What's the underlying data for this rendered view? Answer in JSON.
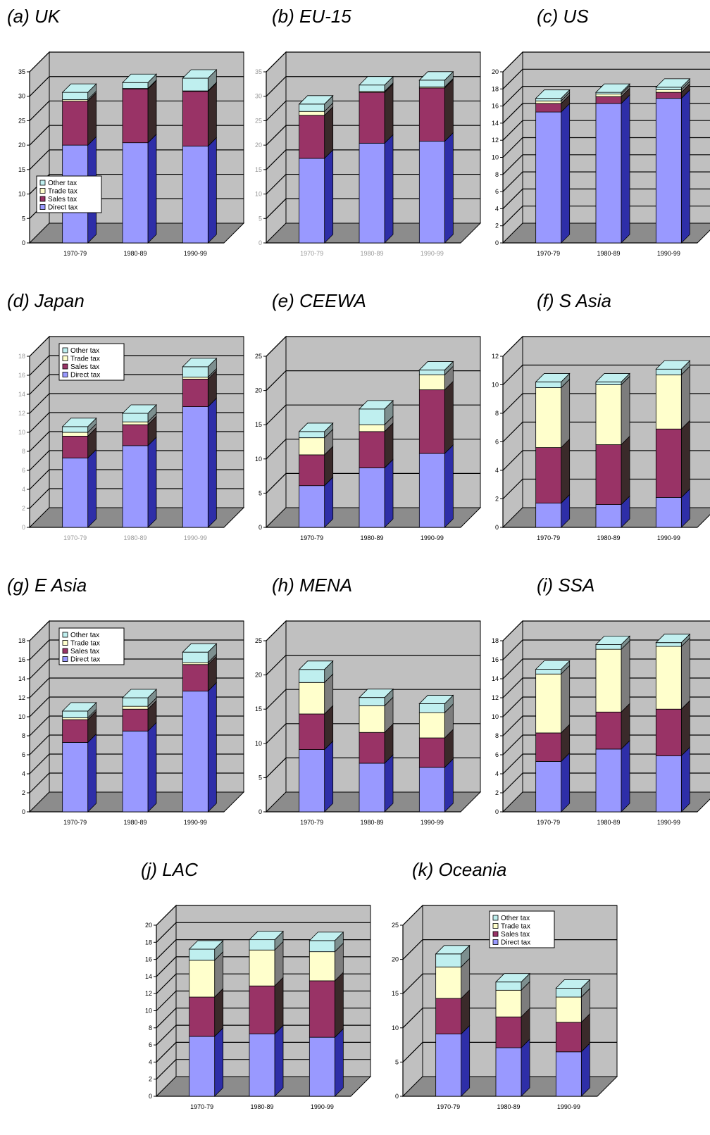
{
  "colors": {
    "Other tax": "#bfefef",
    "Trade tax": "#ffffcc",
    "Sales tax": "#993366",
    "Direct tax": "#9999ff",
    "wall": "#c0c0c0",
    "floor": "#8c8c8c"
  },
  "chart_data": [
    {
      "type": "bar",
      "title": "(a) UK",
      "categories": [
        "1970-79",
        "1980-89",
        "1990-99"
      ],
      "ylim": [
        0,
        35
      ],
      "yticks": [
        0,
        5,
        10,
        15,
        20,
        25,
        30,
        35
      ],
      "legend": [
        "Other tax",
        "Trade tax",
        "Sales tax",
        "Direct tax"
      ],
      "legend_position": "bottom-left",
      "series": [
        {
          "name": "Direct tax",
          "values": [
            20,
            20.5,
            19.8
          ]
        },
        {
          "name": "Sales tax",
          "values": [
            9,
            11,
            11.2
          ]
        },
        {
          "name": "Trade tax",
          "values": [
            0.3,
            0.1,
            0.1
          ]
        },
        {
          "name": "Other tax",
          "values": [
            1.5,
            1.2,
            2.6
          ]
        }
      ]
    },
    {
      "type": "bar",
      "title": "(b) EU-15",
      "categories": [
        "1970-79",
        "1980-89",
        "1990-99"
      ],
      "ylim": [
        0,
        35
      ],
      "yticks": [
        0,
        5,
        10,
        15,
        20,
        25,
        30,
        35
      ],
      "series": [
        {
          "name": "Direct tax",
          "values": [
            17.3,
            20.4,
            20.8
          ]
        },
        {
          "name": "Sales tax",
          "values": [
            8.8,
            10.4,
            10.9
          ]
        },
        {
          "name": "Trade tax",
          "values": [
            0.8,
            0.2,
            0.2
          ]
        },
        {
          "name": "Other tax",
          "values": [
            1.5,
            1.3,
            1.4
          ]
        }
      ]
    },
    {
      "type": "bar",
      "title": "(c) US",
      "categories": [
        "1970-79",
        "1980-89",
        "1990-99"
      ],
      "ylim": [
        0,
        20
      ],
      "yticks": [
        0,
        2,
        4,
        6,
        8,
        10,
        12,
        14,
        16,
        18,
        20
      ],
      "series": [
        {
          "name": "Direct tax",
          "values": [
            15.3,
            16.3,
            16.9
          ]
        },
        {
          "name": "Sales tax",
          "values": [
            1.0,
            0.8,
            0.7
          ]
        },
        {
          "name": "Trade tax",
          "values": [
            0.3,
            0.3,
            0.3
          ]
        },
        {
          "name": "Other tax",
          "values": [
            0.3,
            0.2,
            0.3
          ]
        }
      ]
    },
    {
      "type": "bar",
      "title": "(d) Japan",
      "categories": [
        "1970-79",
        "1980-89",
        "1990-99"
      ],
      "ylim": [
        0,
        18
      ],
      "yticks": [
        0,
        2,
        4,
        6,
        8,
        10,
        12,
        14,
        16,
        18
      ],
      "legend": [
        "Other tax",
        "Trade tax",
        "Sales tax",
        "Direct tax"
      ],
      "legend_position": "top-left",
      "series": [
        {
          "name": "Direct tax",
          "values": [
            7.3,
            8.6,
            12.7
          ]
        },
        {
          "name": "Sales tax",
          "values": [
            2.3,
            2.2,
            2.9
          ]
        },
        {
          "name": "Trade tax",
          "values": [
            0.4,
            0.3,
            0.2
          ]
        },
        {
          "name": "Other tax",
          "values": [
            0.6,
            0.9,
            1.1
          ]
        }
      ]
    },
    {
      "type": "bar",
      "title": "(e) CEEWA",
      "categories": [
        "1970-79",
        "1980-89",
        "1990-99"
      ],
      "ylim": [
        0,
        25
      ],
      "yticks": [
        0,
        5,
        10,
        15,
        20,
        25
      ],
      "series": [
        {
          "name": "Direct tax",
          "values": [
            6.1,
            8.7,
            10.8
          ]
        },
        {
          "name": "Sales tax",
          "values": [
            4.5,
            5.3,
            9.3
          ]
        },
        {
          "name": "Trade tax",
          "values": [
            2.5,
            1.0,
            2.2
          ]
        },
        {
          "name": "Other tax",
          "values": [
            0.9,
            2.3,
            0.7
          ]
        }
      ]
    },
    {
      "type": "bar",
      "title": "(f) S Asia",
      "categories": [
        "1970-79",
        "1980-89",
        "1990-99"
      ],
      "ylim": [
        0,
        12
      ],
      "yticks": [
        0,
        2,
        4,
        6,
        8,
        10,
        12
      ],
      "series": [
        {
          "name": "Direct tax",
          "values": [
            1.7,
            1.6,
            2.1
          ]
        },
        {
          "name": "Sales tax",
          "values": [
            3.9,
            4.2,
            4.8
          ]
        },
        {
          "name": "Trade tax",
          "values": [
            4.2,
            4.2,
            3.8
          ]
        },
        {
          "name": "Other tax",
          "values": [
            0.4,
            0.2,
            0.4
          ]
        }
      ]
    },
    {
      "type": "bar",
      "title": "(g) E Asia",
      "categories": [
        "1970-79",
        "1980-89",
        "1990-99"
      ],
      "ylim": [
        0,
        18
      ],
      "yticks": [
        0,
        2,
        4,
        6,
        8,
        10,
        12,
        14,
        16,
        18
      ],
      "legend": [
        "Other tax",
        "Trade tax",
        "Sales tax",
        "Direct tax"
      ],
      "legend_position": "top-left",
      "series": [
        {
          "name": "Direct tax",
          "values": [
            7.3,
            8.5,
            12.7
          ]
        },
        {
          "name": "Sales tax",
          "values": [
            2.4,
            2.3,
            2.8
          ]
        },
        {
          "name": "Trade tax",
          "values": [
            0.2,
            0.3,
            0.2
          ]
        },
        {
          "name": "Other tax",
          "values": [
            0.7,
            0.9,
            1.1
          ]
        }
      ]
    },
    {
      "type": "bar",
      "title": "(h) MENA",
      "categories": [
        "1970-79",
        "1980-89",
        "1990-99"
      ],
      "ylim": [
        0,
        25
      ],
      "yticks": [
        0,
        5,
        10,
        15,
        20,
        25
      ],
      "series": [
        {
          "name": "Direct tax",
          "values": [
            9.1,
            7.1,
            6.5
          ]
        },
        {
          "name": "Sales tax",
          "values": [
            5.2,
            4.5,
            4.3
          ]
        },
        {
          "name": "Trade tax",
          "values": [
            4.6,
            3.9,
            3.7
          ]
        },
        {
          "name": "Other tax",
          "values": [
            1.9,
            1.2,
            1.3
          ]
        }
      ]
    },
    {
      "type": "bar",
      "title": "(i) SSA",
      "categories": [
        "1970-79",
        "1980-89",
        "1990-99"
      ],
      "ylim": [
        0,
        18
      ],
      "yticks": [
        0,
        2,
        4,
        6,
        8,
        10,
        12,
        14,
        16,
        18
      ],
      "series": [
        {
          "name": "Direct tax",
          "values": [
            5.3,
            6.6,
            5.9
          ]
        },
        {
          "name": "Sales tax",
          "values": [
            3.0,
            3.9,
            4.9
          ]
        },
        {
          "name": "Trade tax",
          "values": [
            6.2,
            6.6,
            6.6
          ]
        },
        {
          "name": "Other tax",
          "values": [
            0.5,
            0.5,
            0.4
          ]
        }
      ]
    },
    {
      "type": "bar",
      "title": "(j) LAC",
      "categories": [
        "1970-79",
        "1980-89",
        "1990-99"
      ],
      "ylim": [
        0,
        20
      ],
      "yticks": [
        0,
        2,
        4,
        6,
        8,
        10,
        12,
        14,
        16,
        18,
        20
      ],
      "series": [
        {
          "name": "Direct tax",
          "values": [
            7.0,
            7.3,
            6.9
          ]
        },
        {
          "name": "Sales tax",
          "values": [
            4.6,
            5.6,
            6.6
          ]
        },
        {
          "name": "Trade tax",
          "values": [
            4.3,
            4.2,
            3.4
          ]
        },
        {
          "name": "Other tax",
          "values": [
            1.3,
            1.2,
            1.3
          ]
        }
      ]
    },
    {
      "type": "bar",
      "title": "(k) Oceania",
      "categories": [
        "1970-79",
        "1980-89",
        "1990-99"
      ],
      "ylim": [
        0,
        25
      ],
      "yticks": [
        0,
        5,
        10,
        15,
        20,
        25
      ],
      "legend": [
        "Other tax",
        "Trade tax",
        "Sales tax",
        "Direct tax"
      ],
      "legend_position": "top-right",
      "series": [
        {
          "name": "Direct tax",
          "values": [
            9.1,
            7.1,
            6.5
          ]
        },
        {
          "name": "Sales tax",
          "values": [
            5.2,
            4.5,
            4.3
          ]
        },
        {
          "name": "Trade tax",
          "values": [
            4.6,
            3.9,
            3.7
          ]
        },
        {
          "name": "Other tax",
          "values": [
            1.9,
            1.2,
            1.3
          ]
        }
      ]
    }
  ],
  "x_tick_labels_shown": [
    [
      "1970-79",
      "1980-89",
      "1990-99"
    ],
    [
      "1970-79",
      "1980-89",
      "1990-99"
    ],
    [
      "1970-79",
      "1980-89",
      "1990-99"
    ],
    [
      "1970-79",
      "1980-89",
      "1990-99"
    ],
    [
      "1970-79",
      "1980-89",
      "1990-99"
    ],
    [
      "1970-79",
      "1980-89",
      "1990-99"
    ],
    [
      "1970-79",
      "1980-89",
      "1990-99"
    ],
    [
      "1970-79",
      "1980-89",
      "1990-99"
    ],
    [
      "1970-79",
      "1980-89",
      "1990-99"
    ],
    [
      "1970-79",
      "1980-89",
      "1990-99"
    ],
    [
      "1970-79",
      "1980-89",
      "1990-99"
    ]
  ]
}
